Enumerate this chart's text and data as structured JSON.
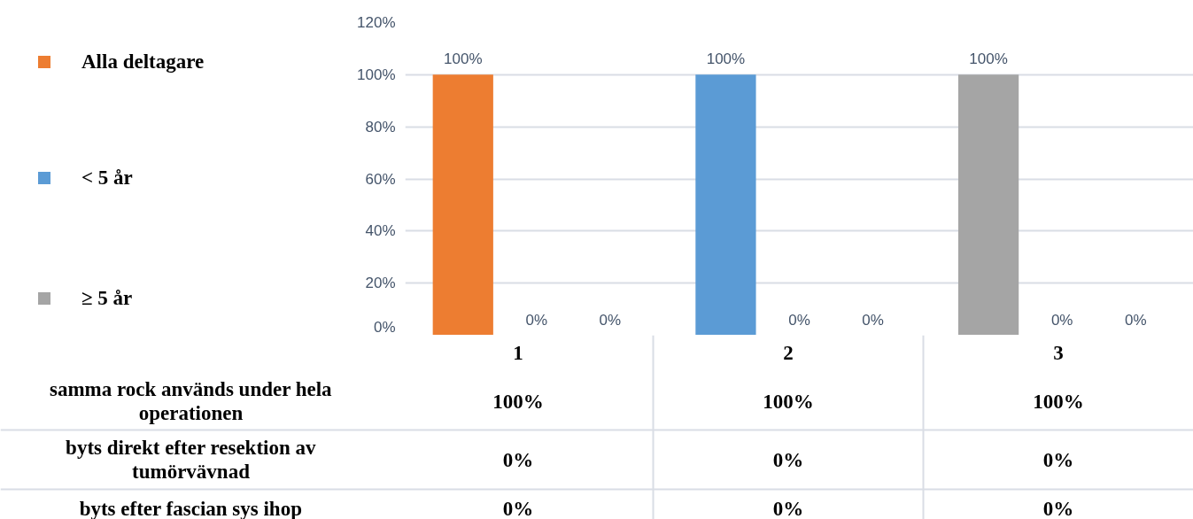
{
  "chart_data": {
    "type": "bar",
    "categories": [
      "1",
      "2",
      "3"
    ],
    "series": [
      {
        "name": "samma rock används under hela operationen",
        "colors": [
          "#ed7d31",
          "#5b9bd5",
          "#a5a5a5"
        ],
        "values": [
          100,
          100,
          100
        ],
        "value_labels": [
          "100%",
          "100%",
          "100%"
        ]
      },
      {
        "name": "byts direkt efter resektion av tumörvävnad",
        "colors": [
          "#ed7d31",
          "#5b9bd5",
          "#a5a5a5"
        ],
        "values": [
          0,
          0,
          0
        ],
        "value_labels": [
          "0%",
          "0%",
          "0%"
        ]
      },
      {
        "name": "byts efter fascian sys ihop",
        "colors": [
          "#ed7d31",
          "#5b9bd5",
          "#a5a5a5"
        ],
        "values": [
          0,
          0,
          0
        ],
        "value_labels": [
          "0%",
          "0%",
          "0%"
        ]
      }
    ],
    "ylim": [
      0,
      120
    ],
    "yticks": [
      {
        "value": 0,
        "label": "0%"
      },
      {
        "value": 20,
        "label": "20%"
      },
      {
        "value": 40,
        "label": "40%"
      },
      {
        "value": 60,
        "label": "60%"
      },
      {
        "value": 80,
        "label": "80%"
      },
      {
        "value": 100,
        "label": "100%"
      },
      {
        "value": 120,
        "label": "120%"
      }
    ],
    "grid": "y",
    "legend": "left",
    "annotations": [
      "Alla deltagare",
      "< 5 år",
      "≥ 5 år"
    ]
  }
}
